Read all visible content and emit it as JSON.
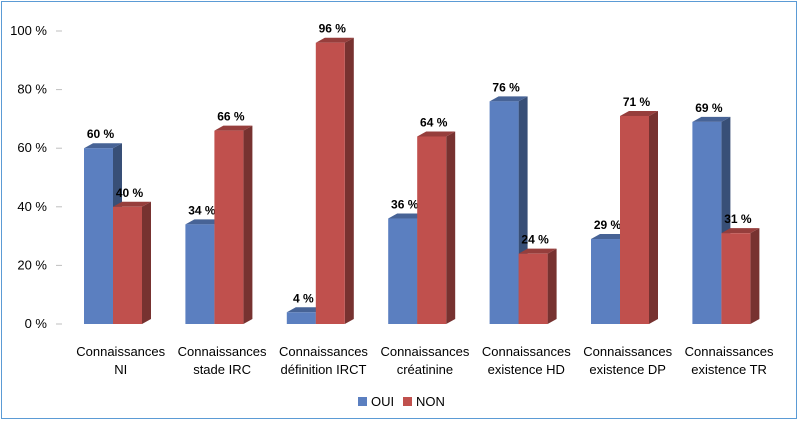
{
  "chart_data": {
    "type": "bar",
    "categories": [
      [
        "Connaissances",
        "NI"
      ],
      [
        "Connaissances",
        "stade IRC"
      ],
      [
        "Connaissances",
        "définition IRCT"
      ],
      [
        "Connaissances",
        "créatinine"
      ],
      [
        "Connaissances",
        "existence HD"
      ],
      [
        "Connaissances",
        "existence DP"
      ],
      [
        "Connaissances",
        "existence TR"
      ]
    ],
    "series": [
      {
        "name": "OUI",
        "color": "#5b7fc0",
        "values": [
          60,
          34,
          4,
          36,
          76,
          29,
          69
        ],
        "labels": [
          "60 %",
          "34 %",
          "4 %",
          "36 %",
          "76 %",
          "29 %",
          "69 %"
        ]
      },
      {
        "name": "NON",
        "color": "#c0504d",
        "values": [
          40,
          66,
          96,
          64,
          24,
          71,
          31
        ],
        "labels": [
          "40 %",
          "66 %",
          "96 %",
          "64 %",
          "24 %",
          "71 %",
          "31 %"
        ]
      }
    ],
    "ylim": [
      0,
      100
    ],
    "yticks": [
      "0 %",
      "20 %",
      "40 %",
      "60 %",
      "80 %",
      "100 %"
    ],
    "ytick_values": [
      0,
      20,
      40,
      60,
      80,
      100
    ],
    "grid": false,
    "legend_position": "bottom-center"
  }
}
